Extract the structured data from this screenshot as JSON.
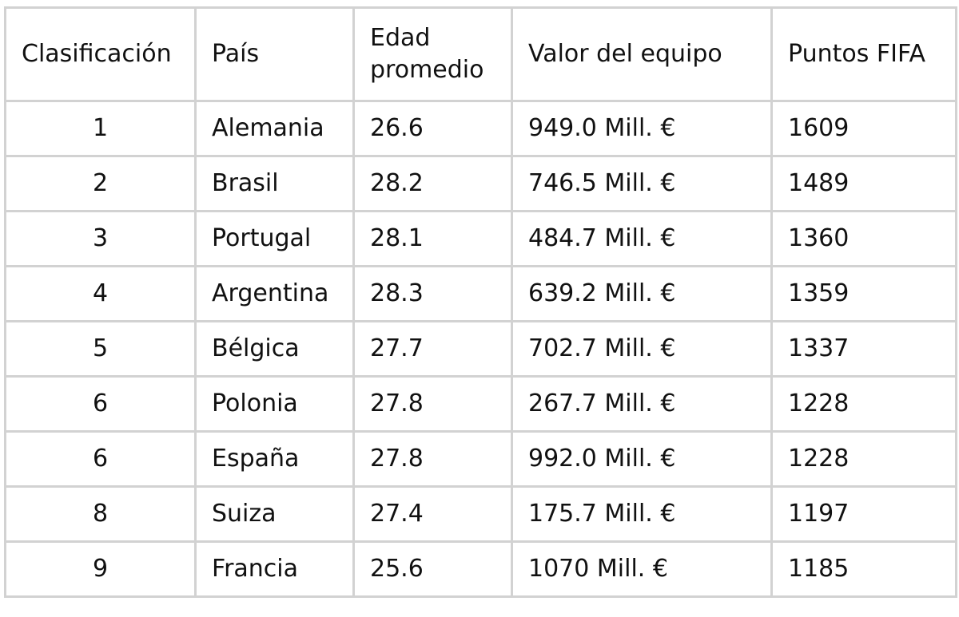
{
  "table": {
    "headers": {
      "rank": "Clasificación",
      "country": "País",
      "age": "Edad promedio",
      "value": "Valor del equipo",
      "points": "Puntos FIFA"
    },
    "rows": [
      {
        "rank": "1",
        "country": "Alemania",
        "age": "26.6",
        "value": "949.0 Mill. €",
        "points": "1609"
      },
      {
        "rank": "2",
        "country": "Brasil",
        "age": "28.2",
        "value": "746.5 Mill. €",
        "points": "1489"
      },
      {
        "rank": "3",
        "country": "Portugal",
        "age": "28.1",
        "value": "484.7 Mill. €",
        "points": "1360"
      },
      {
        "rank": "4",
        "country": "Argentina",
        "age": "28.3",
        "value": "639.2 Mill. €",
        "points": "1359"
      },
      {
        "rank": "5",
        "country": "Bélgica",
        "age": "27.7",
        "value": "702.7 Mill. €",
        "points": "1337"
      },
      {
        "rank": "6",
        "country": "Polonia",
        "age": "27.8",
        "value": "267.7 Mill. €",
        "points": "1228"
      },
      {
        "rank": "6",
        "country": "España",
        "age": "27.8",
        "value": "992.0 Mill. €",
        "points": "1228"
      },
      {
        "rank": "8",
        "country": "Suiza",
        "age": "27.4",
        "value": "175.7 Mill. €",
        "points": "1197"
      },
      {
        "rank": "9",
        "country": "Francia",
        "age": "25.6",
        "value": "1070 Mill. €",
        "points": "1185"
      }
    ]
  }
}
